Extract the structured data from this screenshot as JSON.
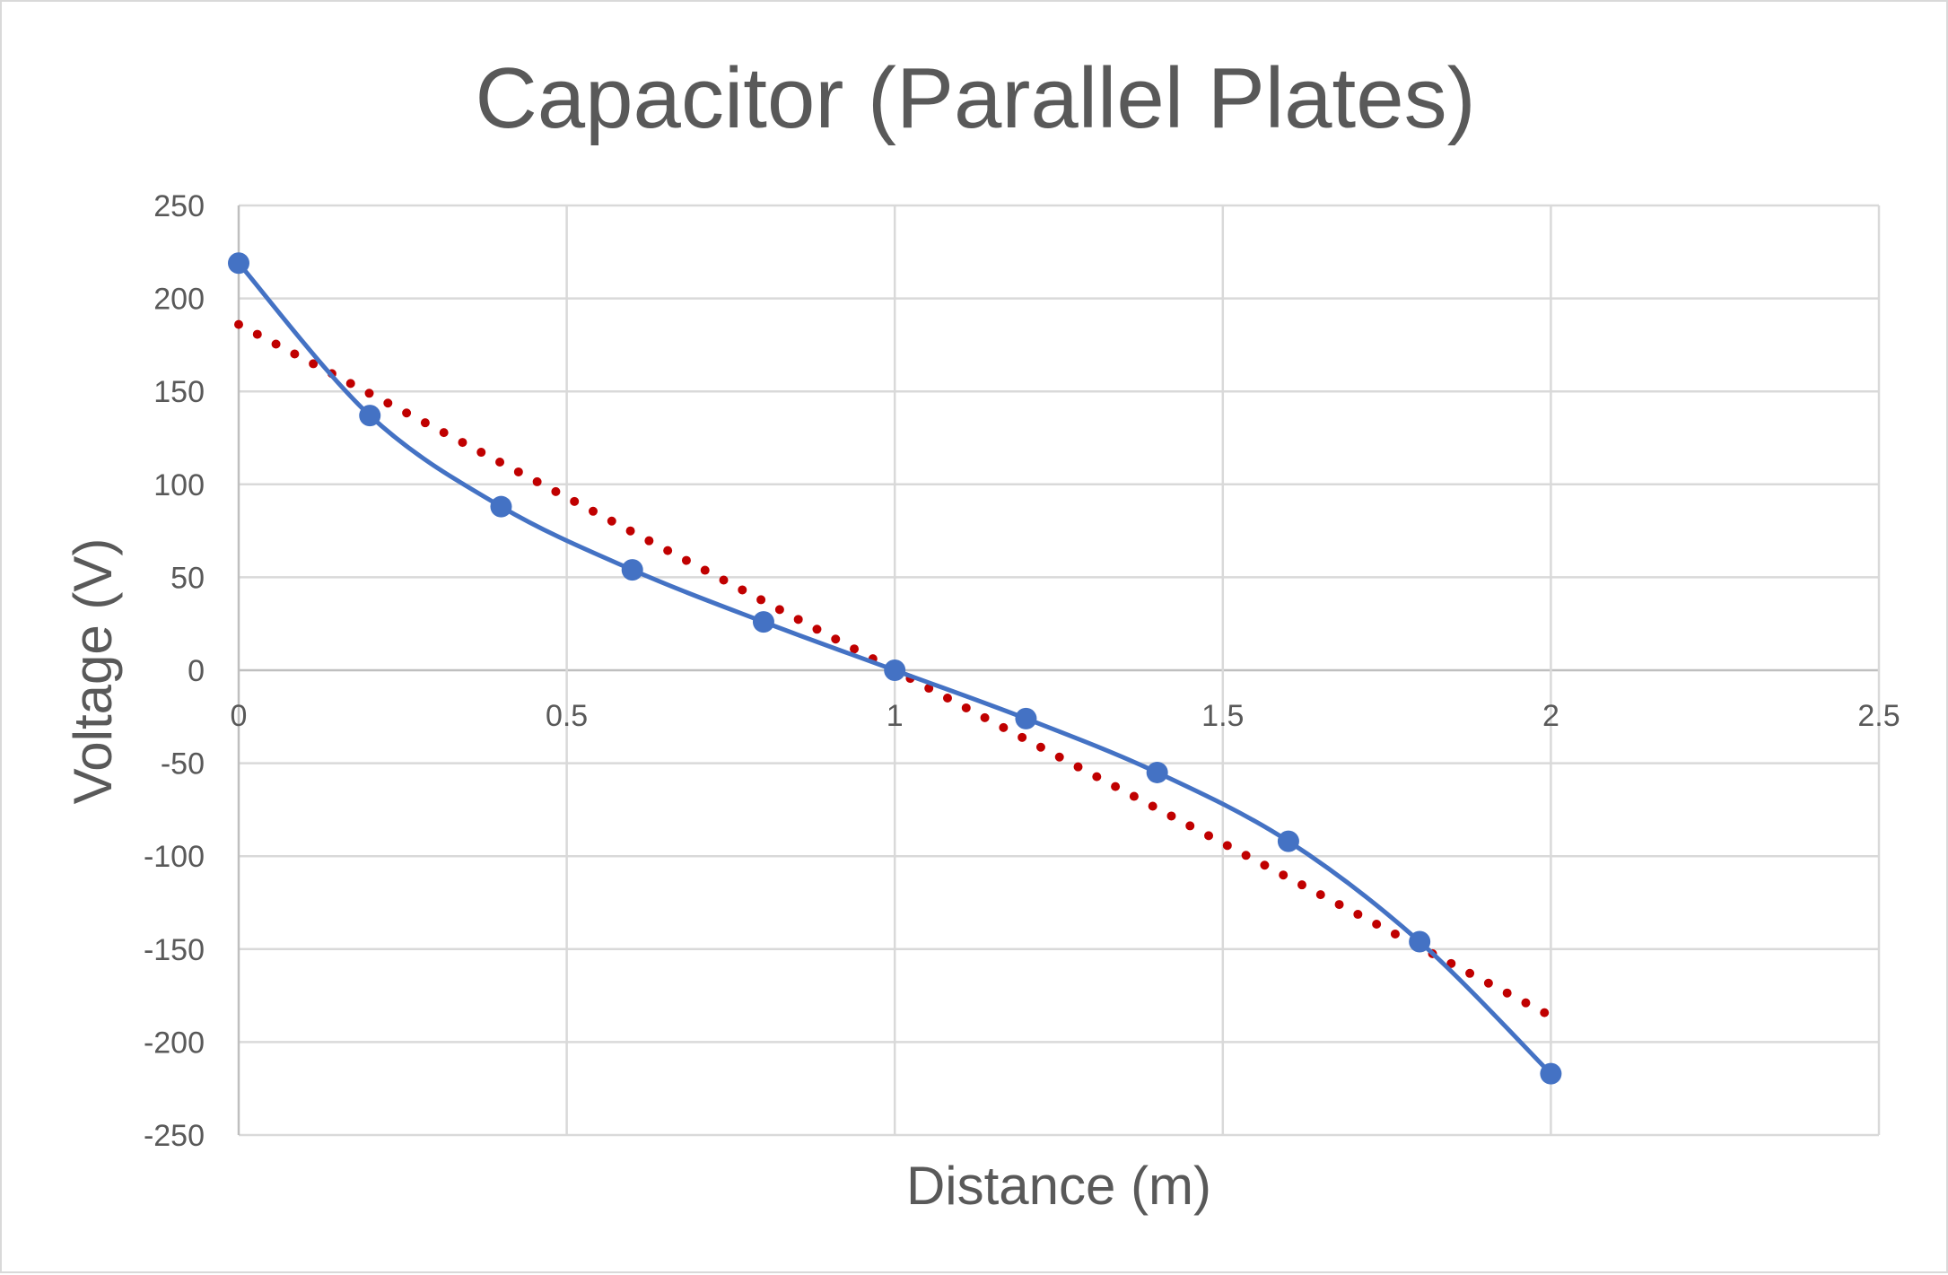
{
  "chart_data": {
    "type": "scatter",
    "title": "Capacitor (Parallel Plates)",
    "xlabel": "Distance (m)",
    "ylabel": "Voltage (V)",
    "xlim": [
      0,
      2.5
    ],
    "ylim": [
      -250,
      250
    ],
    "x_ticks": [
      0,
      0.5,
      1,
      1.5,
      2,
      2.5
    ],
    "x_tick_labels": [
      "0",
      "0.5",
      "1",
      "1.5",
      "2",
      "2.5"
    ],
    "y_ticks": [
      250,
      200,
      150,
      100,
      50,
      0,
      -50,
      -100,
      -150,
      -200,
      -250
    ],
    "y_tick_labels": [
      "250",
      "200",
      "150",
      "100",
      "50",
      "0",
      "-50",
      "-100",
      "-150",
      "-200",
      "-250"
    ],
    "grid": true,
    "legend": "none",
    "series": [
      {
        "style": "smooth-line-with-markers",
        "color": "#4472c4",
        "x": [
          0,
          0.2,
          0.4,
          0.6,
          0.8,
          1.0,
          1.2,
          1.4,
          1.6,
          1.8,
          2.0
        ],
        "y": [
          219,
          137,
          88,
          54,
          26,
          0,
          -26,
          -55,
          -92,
          -146,
          -217
        ]
      },
      {
        "style": "dotted-linear-trendline",
        "color": "#c00000",
        "x": [
          0,
          2.0
        ],
        "y": [
          186,
          -186
        ]
      }
    ]
  }
}
